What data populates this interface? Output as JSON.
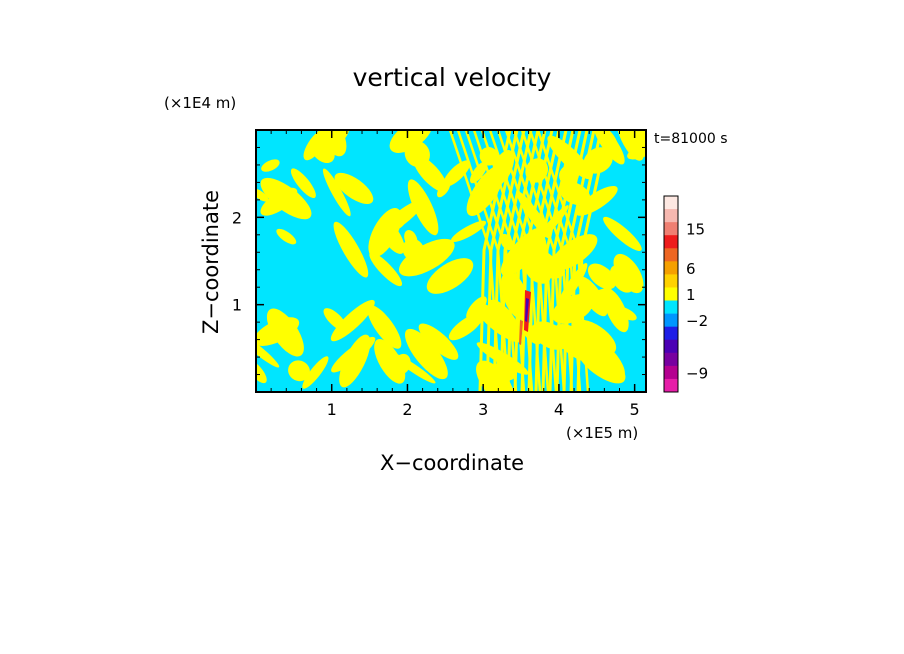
{
  "chart_data": {
    "type": "heatmap",
    "title": "vertical velocity",
    "xlabel": "X−coordinate",
    "ylabel": "Z−coordinate",
    "x_unit": "(×1E5 m)",
    "y_unit": "(×1E4 m)",
    "time_label": "t=81000 s",
    "xlim": [
      0,
      5.15
    ],
    "ylim": [
      0,
      3.0
    ],
    "x_ticks": [
      "1",
      "2",
      "3",
      "4",
      "5"
    ],
    "x_tick_values": [
      1,
      2,
      3,
      4,
      5
    ],
    "y_ticks": [
      "1",
      "2"
    ],
    "y_tick_values": [
      1,
      2
    ],
    "dominant_colors": {
      "positive": "#ffff00",
      "negative": "#00e5ff"
    },
    "colorbar": {
      "bands_top_to_bottom": [
        "#fde8e2",
        "#f6b8b0",
        "#ef7f72",
        "#ee1c1c",
        "#ee6622",
        "#f5a000",
        "#ffd200",
        "#ffff00",
        "#00e5ff",
        "#0096ff",
        "#1e1ee6",
        "#4b00b4",
        "#7800a0",
        "#b40090",
        "#e61ea8"
      ],
      "labels": [
        "15",
        "6",
        "1",
        "−2",
        "−9"
      ],
      "label_values": [
        15,
        6,
        1,
        -2,
        -9
      ]
    }
  }
}
